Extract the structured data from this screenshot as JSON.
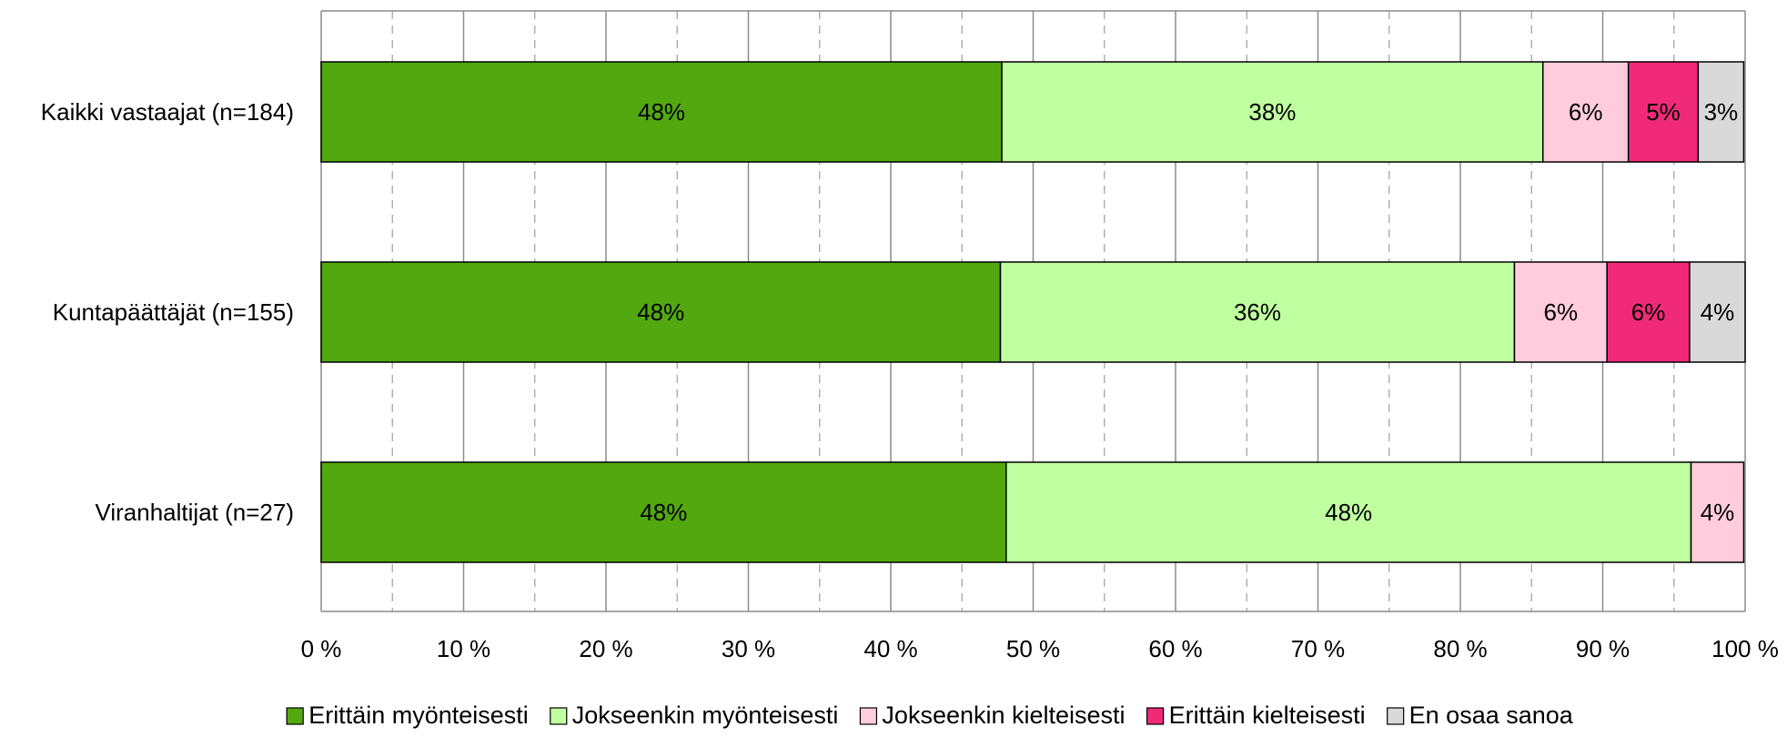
{
  "chart_data": {
    "type": "bar",
    "orientation": "horizontal",
    "stacked": true,
    "percent": true,
    "categories": [
      "Kaikki vastaajat (n=184)",
      "Kuntapäättäjät (n=155)",
      "Viranhaltijat (n=27)"
    ],
    "series": [
      {
        "name": "Erittäin myönteisesti",
        "color": "#53a80f",
        "values": [
          47.8,
          47.7,
          48.1
        ],
        "labels": [
          "48%",
          "48%",
          "48%"
        ]
      },
      {
        "name": "Jokseenkin myönteisesti",
        "color": "#c0ffa0",
        "values": [
          38.0,
          36.1,
          48.1
        ],
        "labels": [
          "38%",
          "36%",
          "48%"
        ]
      },
      {
        "name": "Jokseenkin kielteisesti",
        "color": "#ffccdd",
        "values": [
          6.0,
          6.5,
          3.7
        ],
        "labels": [
          "6%",
          "6%",
          "4%"
        ]
      },
      {
        "name": "Erittäin kielteisesti",
        "color": "#f02a77",
        "values": [
          4.9,
          5.8,
          0
        ],
        "labels": [
          "5%",
          "6%",
          ""
        ]
      },
      {
        "name": "En osaa sanoa",
        "color": "#d9d9d9",
        "values": [
          3.2,
          3.9,
          0
        ],
        "labels": [
          "3%",
          "4%",
          ""
        ]
      }
    ],
    "xaxis": {
      "min": 0,
      "max": 100,
      "ticks": [
        0,
        10,
        20,
        30,
        40,
        50,
        60,
        70,
        80,
        90,
        100
      ],
      "tick_labels": [
        "0 %",
        "10 %",
        "20 %",
        "30 %",
        "40 %",
        "50 %",
        "60 %",
        "70 %",
        "80 %",
        "90 %",
        "100 %"
      ],
      "minor_ticks": [
        5,
        15,
        25,
        35,
        45,
        55,
        65,
        75,
        85,
        95
      ]
    },
    "grid": true,
    "legend_position": "bottom"
  }
}
